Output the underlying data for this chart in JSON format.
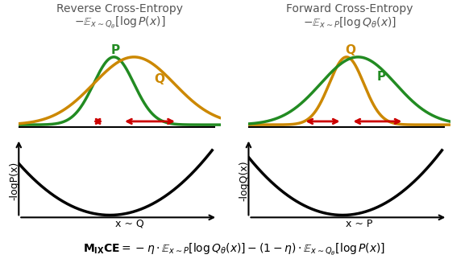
{
  "title_left": "Reverse Cross-Entropy",
  "subtitle_left": "$-\\mathbb{E}_{x\\sim Q_\\theta}[\\log P(x)]$",
  "title_right": "Forward Cross-Entropy",
  "subtitle_right": "$-\\mathbb{E}_{x\\sim P}[\\log Q_\\theta(x)]$",
  "ylabel_left_top": "P",
  "ylabel_right_top_Q": "Q",
  "ylabel_right_top_P": "P",
  "ylabel_left_bottom": "-logP(x)",
  "ylabel_right_bottom": "-logQ(x)",
  "xlabel_left": "x ~ Q",
  "xlabel_right": "x ~ P",
  "bottom_formula": "$\\mathbf{M_{IX}CE} = -\\eta \\cdot \\mathbb{E}_{x\\sim P}[\\log Q_\\theta(x)] - (1-\\eta) \\cdot \\mathbb{E}_{x\\sim Q_\\theta}[\\log P(x)]$",
  "color_P": "#228B22",
  "color_Q": "#CC8800",
  "color_arrow": "#CC0000",
  "color_curve": "#000000",
  "bg_color": "#FFFFFF"
}
